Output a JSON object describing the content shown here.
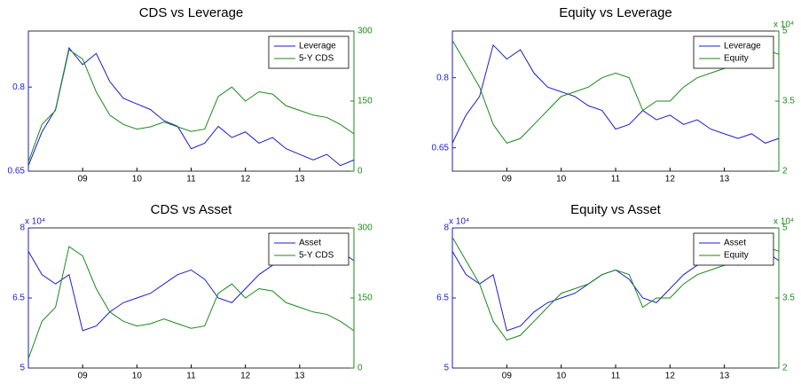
{
  "chart_data": [
    {
      "type": "line",
      "title": "CDS vs Leverage",
      "legend": "northeast",
      "x": [
        2008,
        2008.25,
        2008.5,
        2008.75,
        2009,
        2009.25,
        2009.5,
        2009.75,
        2010,
        2010.25,
        2010.5,
        2010.75,
        2011,
        2011.25,
        2011.5,
        2011.75,
        2012,
        2012.25,
        2012.5,
        2012.75,
        2013,
        2013.25,
        2013.5,
        2013.75,
        2014
      ],
      "xlim": [
        2008,
        2014
      ],
      "xticks": [
        {
          "value": 2009,
          "label": "09"
        },
        {
          "value": 2010,
          "label": "10"
        },
        {
          "value": 2011,
          "label": "11"
        },
        {
          "value": 2012,
          "label": "12"
        },
        {
          "value": 2013,
          "label": "13"
        }
      ],
      "ylim": [
        0.65,
        0.9
      ],
      "yticks": [
        0.65,
        0.8
      ],
      "y2lim": [
        0,
        300
      ],
      "y2ticks": [
        0,
        150,
        300
      ],
      "series": [
        {
          "name": "Leverage",
          "color": "#1c1cc8",
          "values": [
            0.66,
            0.72,
            0.76,
            0.87,
            0.84,
            0.86,
            0.81,
            0.78,
            0.77,
            0.76,
            0.74,
            0.73,
            0.69,
            0.7,
            0.73,
            0.71,
            0.72,
            0.7,
            0.71,
            0.69,
            0.68,
            0.67,
            0.68,
            0.66,
            0.67
          ]
        },
        {
          "name": "5-Y CDS",
          "color": "#1a8a1a",
          "axis": "y2",
          "values": [
            20,
            100,
            130,
            260,
            240,
            170,
            120,
            100,
            90,
            95,
            105,
            95,
            85,
            90,
            160,
            180,
            150,
            170,
            165,
            140,
            130,
            120,
            115,
            100,
            80
          ]
        }
      ]
    },
    {
      "type": "line",
      "title": "Equity vs Leverage",
      "legend": "northeast",
      "y2_scale_label": "x 10⁴",
      "x": [
        2008,
        2008.25,
        2008.5,
        2008.75,
        2009,
        2009.25,
        2009.5,
        2009.75,
        2010,
        2010.25,
        2010.5,
        2010.75,
        2011,
        2011.25,
        2011.5,
        2011.75,
        2012,
        2012.25,
        2012.5,
        2012.75,
        2013,
        2013.25,
        2013.5,
        2013.75,
        2014
      ],
      "xlim": [
        2008,
        2014
      ],
      "xticks": [
        {
          "value": 2009,
          "label": "09"
        },
        {
          "value": 2010,
          "label": "10"
        },
        {
          "value": 2011,
          "label": "11"
        },
        {
          "value": 2012,
          "label": "12"
        },
        {
          "value": 2013,
          "label": "13"
        }
      ],
      "ylim": [
        0.6,
        0.9
      ],
      "yticks": [
        0.65,
        0.8
      ],
      "y2lim": [
        20000,
        50000
      ],
      "y2ticks": [
        {
          "value": 20000,
          "label": "2"
        },
        {
          "value": 35000,
          "label": "3.5"
        },
        {
          "value": 50000,
          "label": "5"
        }
      ],
      "series": [
        {
          "name": "Leverage",
          "color": "#1c1cc8",
          "values": [
            0.66,
            0.72,
            0.76,
            0.87,
            0.84,
            0.86,
            0.81,
            0.78,
            0.77,
            0.76,
            0.74,
            0.73,
            0.69,
            0.7,
            0.73,
            0.71,
            0.72,
            0.7,
            0.71,
            0.69,
            0.68,
            0.67,
            0.68,
            0.66,
            0.67
          ]
        },
        {
          "name": "Equity",
          "color": "#1a8a1a",
          "axis": "y2",
          "values": [
            48000,
            43000,
            38000,
            30000,
            26000,
            27000,
            30000,
            33000,
            36000,
            37000,
            38000,
            40000,
            41000,
            40000,
            33000,
            35000,
            35000,
            38000,
            40000,
            41000,
            42000,
            43000,
            45000,
            46000,
            45000
          ]
        }
      ]
    },
    {
      "type": "line",
      "title": "CDS vs Asset",
      "legend": "northeast",
      "y_scale_label": "x 10⁴",
      "x": [
        2008,
        2008.25,
        2008.5,
        2008.75,
        2009,
        2009.25,
        2009.5,
        2009.75,
        2010,
        2010.25,
        2010.5,
        2010.75,
        2011,
        2011.25,
        2011.5,
        2011.75,
        2012,
        2012.25,
        2012.5,
        2012.75,
        2013,
        2013.25,
        2013.5,
        2013.75,
        2014
      ],
      "xlim": [
        2008,
        2014
      ],
      "xticks": [
        {
          "value": 2009,
          "label": "09"
        },
        {
          "value": 2010,
          "label": "10"
        },
        {
          "value": 2011,
          "label": "11"
        },
        {
          "value": 2012,
          "label": "12"
        },
        {
          "value": 2013,
          "label": "13"
        }
      ],
      "ylim": [
        50000,
        80000
      ],
      "yticks": [
        {
          "value": 50000,
          "label": "5"
        },
        {
          "value": 65000,
          "label": "6.5"
        },
        {
          "value": 80000,
          "label": "8"
        }
      ],
      "y2lim": [
        0,
        300
      ],
      "y2ticks": [
        0,
        150,
        300
      ],
      "series": [
        {
          "name": "Asset",
          "color": "#1c1cc8",
          "values": [
            75000,
            70000,
            68000,
            70000,
            58000,
            59000,
            62000,
            64000,
            65000,
            66000,
            68000,
            70000,
            71000,
            69000,
            65000,
            64000,
            67000,
            70000,
            72000,
            73000,
            74000,
            72000,
            75000,
            75000,
            73000
          ]
        },
        {
          "name": "5-Y CDS",
          "color": "#1a8a1a",
          "axis": "y2",
          "values": [
            20,
            100,
            130,
            260,
            240,
            170,
            120,
            100,
            90,
            95,
            105,
            95,
            85,
            90,
            160,
            180,
            150,
            170,
            165,
            140,
            130,
            120,
            115,
            100,
            80
          ]
        }
      ]
    },
    {
      "type": "line",
      "title": "Equity vs Asset",
      "legend": "northeast",
      "y_scale_label": "x 10⁴",
      "y2_scale_label": "x 10⁴",
      "x": [
        2008,
        2008.25,
        2008.5,
        2008.75,
        2009,
        2009.25,
        2009.5,
        2009.75,
        2010,
        2010.25,
        2010.5,
        2010.75,
        2011,
        2011.25,
        2011.5,
        2011.75,
        2012,
        2012.25,
        2012.5,
        2012.75,
        2013,
        2013.25,
        2013.5,
        2013.75,
        2014
      ],
      "xlim": [
        2008,
        2014
      ],
      "xticks": [
        {
          "value": 2009,
          "label": "09"
        },
        {
          "value": 2010,
          "label": "10"
        },
        {
          "value": 2011,
          "label": "11"
        },
        {
          "value": 2012,
          "label": "12"
        },
        {
          "value": 2013,
          "label": "13"
        }
      ],
      "ylim": [
        50000,
        80000
      ],
      "yticks": [
        {
          "value": 50000,
          "label": "5"
        },
        {
          "value": 65000,
          "label": "6.5"
        },
        {
          "value": 80000,
          "label": "8"
        }
      ],
      "y2lim": [
        20000,
        50000
      ],
      "y2ticks": [
        {
          "value": 20000,
          "label": "2"
        },
        {
          "value": 35000,
          "label": "3.5"
        },
        {
          "value": 50000,
          "label": "5"
        }
      ],
      "series": [
        {
          "name": "Asset",
          "color": "#1c1cc8",
          "values": [
            75000,
            70000,
            68000,
            70000,
            58000,
            59000,
            62000,
            64000,
            65000,
            66000,
            68000,
            70000,
            71000,
            69000,
            65000,
            64000,
            67000,
            70000,
            72000,
            73000,
            74000,
            72000,
            75000,
            75000,
            73000
          ]
        },
        {
          "name": "Equity",
          "color": "#1a8a1a",
          "axis": "y2",
          "values": [
            48000,
            43000,
            38000,
            30000,
            26000,
            27000,
            30000,
            33000,
            36000,
            37000,
            38000,
            40000,
            41000,
            40000,
            33000,
            35000,
            35000,
            38000,
            40000,
            41000,
            42000,
            43000,
            45000,
            46000,
            45000
          ]
        }
      ]
    }
  ]
}
